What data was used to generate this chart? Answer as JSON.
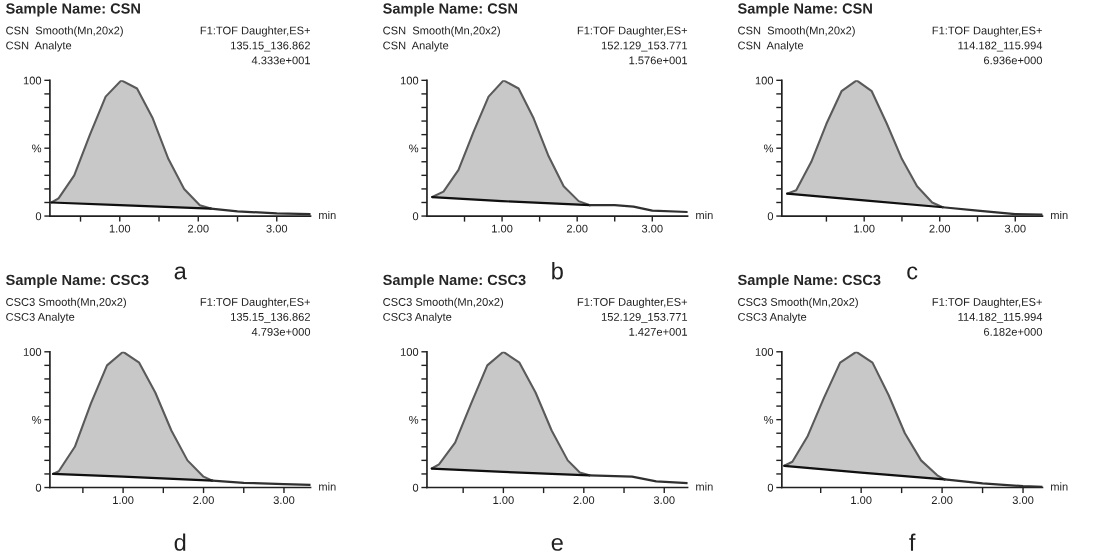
{
  "chart_data": [
    {
      "type": "area",
      "title": "Sample Name: CSN",
      "xlabel": "min",
      "annotations": [
        "CSN  Smooth(Mn,20x2)",
        "CSN  Analyte",
        "F1:TOF Daughter,ES+",
        "135.15_136.862",
        "4.333e+001",
        "a"
      ],
      "xlim": [
        0.11,
        3.43
      ],
      "xticks": [
        {
          "value": 0.5,
          "label": null
        },
        {
          "value": 1,
          "label": "1.00"
        },
        {
          "value": 1.5,
          "label": null
        },
        {
          "value": 2,
          "label": "2.00"
        },
        {
          "value": 2.5,
          "label": null
        },
        {
          "value": 3,
          "label": "3.00"
        }
      ],
      "ylim": [
        0,
        100
      ],
      "yticks": [
        0,
        {
          "value": 10,
          "label": null
        },
        {
          "value": 20,
          "label": null
        },
        {
          "value": 30,
          "label": null
        },
        {
          "value": 40,
          "label": null
        },
        {
          "value": 50,
          "label": "%"
        },
        {
          "value": 60,
          "label": null
        },
        {
          "value": 70,
          "label": null
        },
        {
          "value": 80,
          "label": null
        },
        {
          "value": 90,
          "label": null
        },
        100
      ],
      "series": [
        {
          "type": "line",
          "color": "#101010",
          "x": [
            0.13,
            1.0,
            2.16
          ],
          "values": [
            10,
            8,
            5.5
          ]
        },
        {
          "color": "#c8c8c8",
          "x": [
            0.13,
            0.22,
            0.42,
            0.62,
            0.82,
            1.02,
            1.22,
            1.42,
            1.62,
            1.82,
            2.02,
            2.16
          ],
          "values": [
            10,
            13,
            30,
            60,
            88,
            100,
            94,
            72,
            42,
            20,
            8,
            5.5
          ]
        },
        {
          "type": "line",
          "color": "#303030",
          "x": [
            2.16,
            2.5,
            3.0,
            3.43
          ],
          "values": [
            5.5,
            3.5,
            2,
            1.5
          ]
        }
      ]
    },
    {
      "type": "area",
      "title": "Sample Name: CSN",
      "xlabel": "min",
      "annotations": [
        "CSN  Smooth(Mn,20x2)",
        "CSN  Analyte",
        "F1:TOF Daughter,ES+",
        "152.129_153.771",
        "1.576e+001",
        "b"
      ],
      "xlim": [
        0.0,
        3.47
      ],
      "xticks": [
        {
          "value": 0.5,
          "label": null
        },
        {
          "value": 1,
          "label": "1.00"
        },
        {
          "value": 1.5,
          "label": null
        },
        {
          "value": 2,
          "label": "2.00"
        },
        {
          "value": 2.5,
          "label": null
        },
        {
          "value": 3,
          "label": "3.00"
        }
      ],
      "ylim": [
        0,
        100
      ],
      "yticks": [
        0,
        {
          "value": 10,
          "label": null
        },
        {
          "value": 20,
          "label": null
        },
        {
          "value": 30,
          "label": null
        },
        {
          "value": 40,
          "label": null
        },
        {
          "value": 50,
          "label": "%"
        },
        {
          "value": 60,
          "label": null
        },
        {
          "value": 70,
          "label": null
        },
        {
          "value": 80,
          "label": null
        },
        {
          "value": 90,
          "label": null
        },
        100
      ],
      "series": [
        {
          "type": "line",
          "color": "#101010",
          "x": [
            0.07,
            1.0,
            2.17
          ],
          "values": [
            14,
            11,
            8
          ]
        },
        {
          "color": "#c8c8c8",
          "x": [
            0.07,
            0.22,
            0.42,
            0.62,
            0.82,
            1.02,
            1.22,
            1.42,
            1.62,
            1.82,
            2.02,
            2.17
          ],
          "values": [
            14,
            18,
            34,
            62,
            88,
            100,
            94,
            72,
            44,
            22,
            11,
            8
          ]
        },
        {
          "type": "line",
          "color": "#303030",
          "x": [
            2.17,
            2.5,
            2.75,
            3.0,
            3.47
          ],
          "values": [
            8,
            8,
            7,
            4,
            3
          ]
        }
      ]
    },
    {
      "type": "area",
      "title": "Sample Name: CSN",
      "xlabel": "min",
      "annotations": [
        "CSN  Smooth(Mn,20x2)",
        "CSN  Analyte",
        "F1:TOF Daughter,ES+",
        "114.182_115.994",
        "6.936e+000",
        "c"
      ],
      "xlim": [
        -0.09,
        3.36
      ],
      "xticks": [
        {
          "value": 0.5,
          "label": null
        },
        {
          "value": 1,
          "label": "1.00"
        },
        {
          "value": 1.5,
          "label": null
        },
        {
          "value": 2,
          "label": "2.00"
        },
        {
          "value": 2.5,
          "label": null
        },
        {
          "value": 3,
          "label": "3.00"
        }
      ],
      "ylim": [
        0,
        100
      ],
      "yticks": [
        0,
        {
          "value": 10,
          "label": null
        },
        {
          "value": 20,
          "label": null
        },
        {
          "value": 30,
          "label": null
        },
        {
          "value": 40,
          "label": null
        },
        {
          "value": 50,
          "label": "%"
        },
        {
          "value": 60,
          "label": null
        },
        {
          "value": 70,
          "label": null
        },
        {
          "value": 80,
          "label": null
        },
        {
          "value": 90,
          "label": null
        },
        100
      ],
      "series": [
        {
          "type": "line",
          "color": "#101010",
          "x": [
            -0.02,
            1.0,
            2.04
          ],
          "values": [
            16.5,
            11.5,
            6.5
          ]
        },
        {
          "color": "#c8c8c8",
          "x": [
            -0.02,
            0.1,
            0.3,
            0.5,
            0.7,
            0.9,
            1.1,
            1.3,
            1.5,
            1.7,
            1.9,
            2.04
          ],
          "values": [
            16.5,
            19,
            40,
            68,
            92,
            100,
            92,
            68,
            42,
            22,
            10,
            6.5
          ]
        },
        {
          "type": "line",
          "color": "#303030",
          "x": [
            2.04,
            2.5,
            3.0,
            3.36
          ],
          "values": [
            6.5,
            4,
            1.5,
            1
          ]
        }
      ]
    },
    {
      "type": "area",
      "title": "Sample Name: CSC3",
      "xlabel": "min",
      "annotations": [
        "CSC3 Smooth(Mn,20x2)",
        "CSC3 Analyte",
        "F1:TOF Daughter,ES+",
        "135.15_136.862",
        "4.793e+000",
        "d"
      ],
      "xlim": [
        0.09,
        3.33
      ],
      "xticks": [
        {
          "value": 0.5,
          "label": null
        },
        {
          "value": 1,
          "label": "1.00"
        },
        {
          "value": 1.5,
          "label": null
        },
        {
          "value": 2,
          "label": "2.00"
        },
        {
          "value": 2.5,
          "label": null
        },
        {
          "value": 3,
          "label": "3.00"
        }
      ],
      "ylim": [
        0,
        100
      ],
      "yticks": [
        0,
        {
          "value": 10,
          "label": null
        },
        {
          "value": 20,
          "label": null
        },
        {
          "value": 30,
          "label": null
        },
        {
          "value": 40,
          "label": null
        },
        {
          "value": 50,
          "label": "%"
        },
        {
          "value": 60,
          "label": null
        },
        {
          "value": 70,
          "label": null
        },
        {
          "value": 80,
          "label": null
        },
        {
          "value": 90,
          "label": null
        },
        100
      ],
      "series": [
        {
          "type": "line",
          "color": "#101010",
          "x": [
            0.13,
            1.0,
            2.11
          ],
          "values": [
            10,
            8,
            5
          ]
        },
        {
          "color": "#c8c8c8",
          "x": [
            0.13,
            0.2,
            0.4,
            0.6,
            0.8,
            1.0,
            1.2,
            1.4,
            1.6,
            1.8,
            2.0,
            2.11
          ],
          "values": [
            10,
            12,
            30,
            62,
            90,
            100,
            92,
            70,
            42,
            20,
            8,
            5
          ]
        },
        {
          "type": "line",
          "color": "#303030",
          "x": [
            2.11,
            2.5,
            3.0,
            3.33
          ],
          "values": [
            5,
            3.5,
            2.5,
            2
          ]
        }
      ]
    },
    {
      "type": "area",
      "title": "Sample Name: CSC3",
      "xlabel": "min",
      "annotations": [
        "CSC3 Smooth(Mn,20x2)",
        "CSC3 Analyte",
        "F1:TOF Daughter,ES+",
        "152.129_153.771",
        "1.427e+001",
        "e"
      ],
      "xlim": [
        0.05,
        3.29
      ],
      "xticks": [
        {
          "value": 0.5,
          "label": null
        },
        {
          "value": 1,
          "label": "1.00"
        },
        {
          "value": 1.5,
          "label": null
        },
        {
          "value": 2,
          "label": "2.00"
        },
        {
          "value": 2.5,
          "label": null
        },
        {
          "value": 3,
          "label": "3.00"
        }
      ],
      "ylim": [
        0,
        100
      ],
      "yticks": [
        0,
        {
          "value": 10,
          "label": null
        },
        {
          "value": 20,
          "label": null
        },
        {
          "value": 30,
          "label": null
        },
        {
          "value": 40,
          "label": null
        },
        {
          "value": 50,
          "label": "%"
        },
        {
          "value": 60,
          "label": null
        },
        {
          "value": 70,
          "label": null
        },
        {
          "value": 80,
          "label": null
        },
        {
          "value": 90,
          "label": null
        },
        100
      ],
      "series": [
        {
          "type": "line",
          "color": "#101010",
          "x": [
            0.11,
            1.0,
            2.07
          ],
          "values": [
            14,
            11.5,
            9
          ]
        },
        {
          "color": "#c8c8c8",
          "x": [
            0.11,
            0.2,
            0.4,
            0.6,
            0.8,
            1.0,
            1.2,
            1.4,
            1.6,
            1.8,
            1.95,
            2.07
          ],
          "values": [
            14,
            17,
            33,
            62,
            90,
            100,
            92,
            70,
            42,
            20,
            11,
            9
          ]
        },
        {
          "type": "line",
          "color": "#303030",
          "x": [
            2.07,
            2.6,
            2.9,
            3.29
          ],
          "values": [
            9,
            8,
            4.5,
            3.3
          ]
        }
      ]
    },
    {
      "type": "area",
      "title": "Sample Name: CSC3",
      "xlabel": "min",
      "annotations": [
        "CSC3 Smooth(Mn,20x2)",
        "CSC3 Analyte",
        "F1:TOF Daughter,ES+",
        "114.182_115.994",
        "6.182e+000",
        "f"
      ],
      "xlim": [
        0.02,
        3.24
      ],
      "xticks": [
        {
          "value": 0.5,
          "label": null
        },
        {
          "value": 1,
          "label": "1.00"
        },
        {
          "value": 1.5,
          "label": null
        },
        {
          "value": 2,
          "label": "2.00"
        },
        {
          "value": 2.5,
          "label": null
        },
        {
          "value": 3,
          "label": "3.00"
        }
      ],
      "ylim": [
        0,
        100
      ],
      "yticks": [
        0,
        {
          "value": 10,
          "label": null
        },
        {
          "value": 20,
          "label": null
        },
        {
          "value": 30,
          "label": null
        },
        {
          "value": 40,
          "label": null
        },
        {
          "value": 50,
          "label": "%"
        },
        {
          "value": 60,
          "label": null
        },
        {
          "value": 70,
          "label": null
        },
        {
          "value": 80,
          "label": null
        },
        {
          "value": 90,
          "label": null
        },
        100
      ],
      "series": [
        {
          "type": "line",
          "color": "#101010",
          "x": [
            0.05,
            1.0,
            2.03
          ],
          "values": [
            16,
            11,
            6
          ]
        },
        {
          "color": "#c8c8c8",
          "x": [
            0.05,
            0.15,
            0.34,
            0.54,
            0.74,
            0.94,
            1.14,
            1.34,
            1.54,
            1.74,
            1.94,
            2.03
          ],
          "values": [
            16,
            19,
            38,
            66,
            92,
            100,
            92,
            68,
            40,
            20,
            9,
            6
          ]
        },
        {
          "type": "line",
          "color": "#303030",
          "x": [
            2.03,
            2.5,
            3.0,
            3.24
          ],
          "values": [
            6,
            3,
            1,
            0.5
          ]
        }
      ]
    }
  ]
}
